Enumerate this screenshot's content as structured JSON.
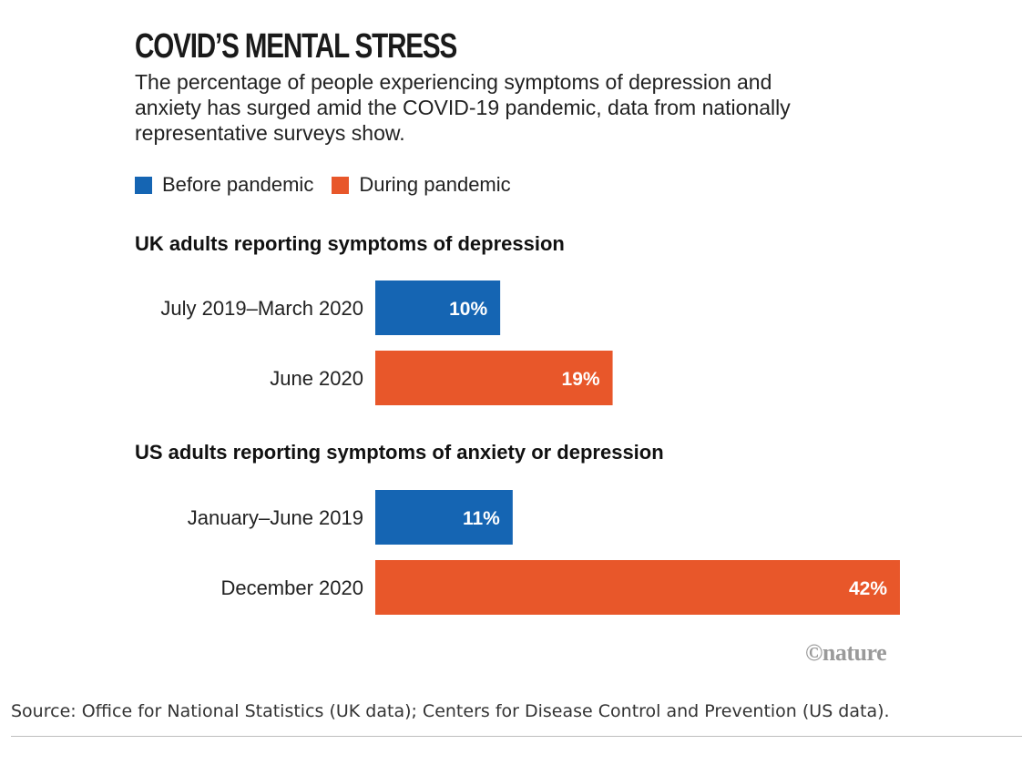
{
  "title": "COVID’S MENTAL STRESS",
  "subtitle": "The percentage of people experiencing symptoms of depression and anxiety has surged amid the COVID-19 pandemic, data from nationally representative surveys show.",
  "legend": {
    "before_label": "Before pandemic",
    "during_label": "During pandemic",
    "before_color": "#1565b3",
    "during_color": "#e8572a"
  },
  "chart_data": {
    "type": "bar",
    "orientation": "horizontal",
    "value_unit": "%",
    "xlim": [
      0,
      42
    ],
    "panels": [
      {
        "title": "UK adults reporting symptoms of depression",
        "categories": [
          "July 2019–March 2020",
          "June 2020"
        ],
        "values": [
          10,
          19
        ],
        "labels": [
          "10%",
          "19%"
        ],
        "groups": [
          "before",
          "during"
        ]
      },
      {
        "title": "US adults reporting symptoms of anxiety or depression",
        "categories": [
          "January–June 2019",
          "December 2020"
        ],
        "values": [
          11,
          42
        ],
        "labels": [
          "11%",
          "42%"
        ],
        "groups": [
          "before",
          "during"
        ]
      }
    ]
  },
  "logo": "©nature",
  "source": "Source: Office for National Statistics (UK data); Centers for Disease Control and Prevention (US data)."
}
